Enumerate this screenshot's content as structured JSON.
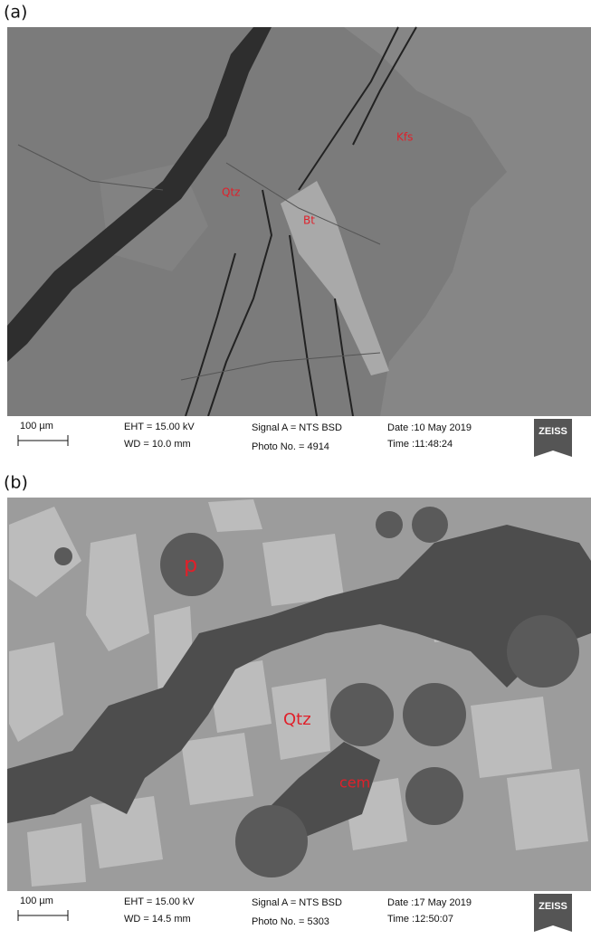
{
  "panels": [
    {
      "label": "(a)",
      "annotations": [
        "Qtz",
        "Bt",
        "Kfs"
      ],
      "info": {
        "scale": "100 µm",
        "eht": "EHT = 15.00 kV",
        "wd": "WD = 10.0 mm",
        "signal": "Signal A = NTS BSD",
        "photo": "Photo No. = 4914",
        "date": "Date :10 May 2019",
        "time": "Time :11:48:24",
        "logo": "ZEISS"
      }
    },
    {
      "label": "(b)",
      "annotations": [
        "p",
        "Qtz",
        "cem"
      ],
      "info": {
        "scale": "100 µm",
        "eht": "EHT = 15.00 kV",
        "wd": "WD = 14.5 mm",
        "signal": "Signal A = NTS BSD",
        "photo": "Photo No. = 5303",
        "date": "Date :17 May 2019",
        "time": "Time :12:50:07",
        "logo": "ZEISS"
      }
    }
  ]
}
